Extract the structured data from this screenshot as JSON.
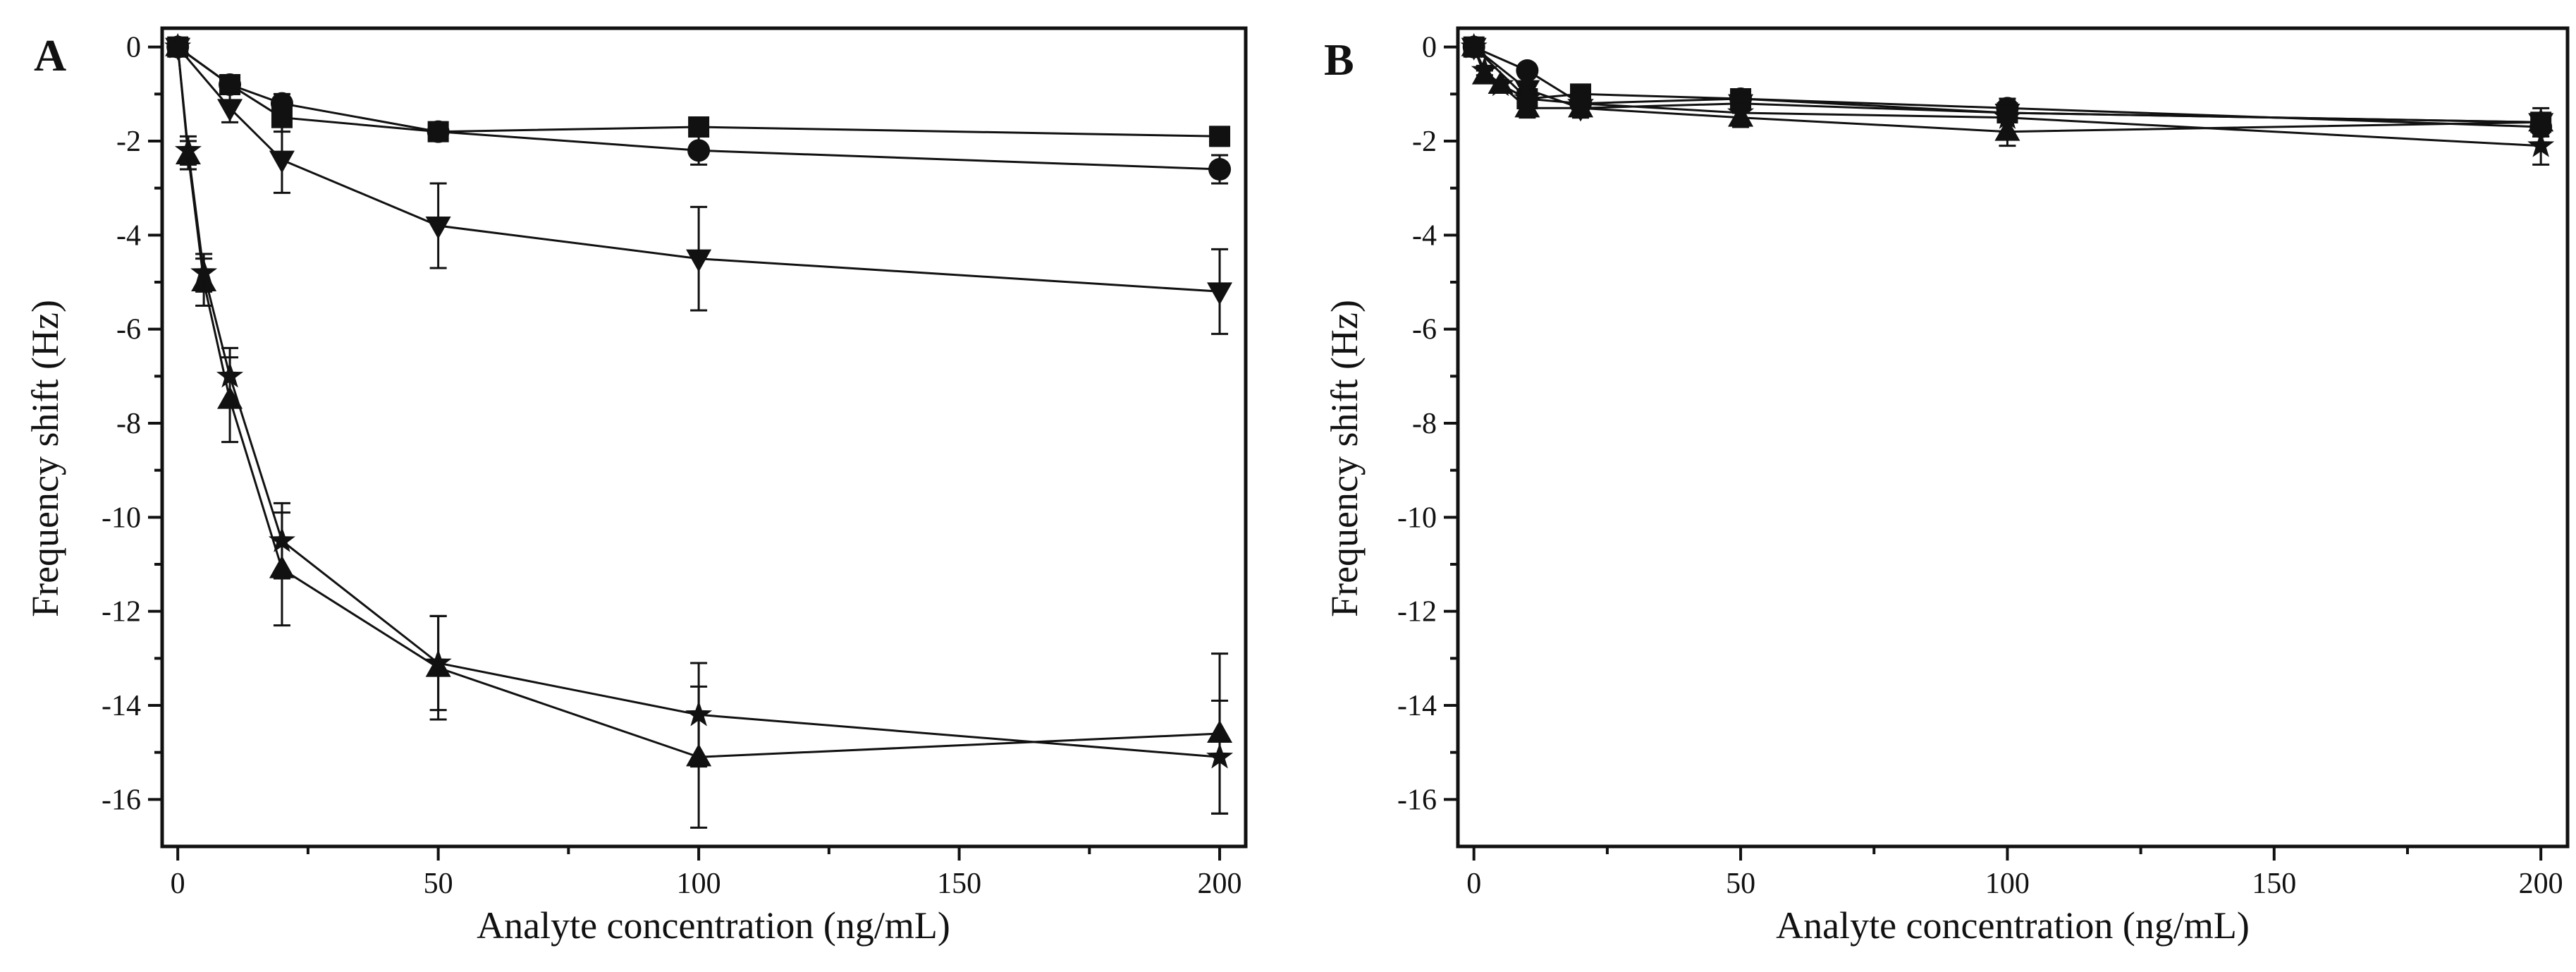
{
  "figure": {
    "panel_a_letter": "A",
    "panel_b_letter": "B"
  },
  "colors": {
    "ink": "#111111",
    "background": "#ffffff"
  },
  "chart_data": [
    {
      "panel": "A",
      "type": "line",
      "title": "",
      "xlabel": "Analyte concentration (ng/mL)",
      "ylabel": "Frequency shift (Hz)",
      "xlim": [
        -3,
        205
      ],
      "ylim": [
        -17,
        0.4
      ],
      "xticks": [
        0,
        50,
        100,
        150,
        200
      ],
      "yticks": [
        0,
        -2,
        -4,
        -6,
        -8,
        -10,
        -12,
        -14,
        -16
      ],
      "grid": false,
      "legend": "none",
      "series": [
        {
          "name": "square",
          "marker": "square",
          "x": [
            0,
            10,
            20,
            50,
            100,
            200
          ],
          "y": [
            0,
            -0.8,
            -1.5,
            -1.8,
            -1.7,
            -1.9
          ],
          "err": [
            0,
            0.1,
            0.3,
            0.1,
            0.2,
            0.2
          ]
        },
        {
          "name": "circle",
          "marker": "circle",
          "x": [
            0,
            10,
            20,
            50,
            100,
            200
          ],
          "y": [
            0,
            -0.8,
            -1.2,
            -1.8,
            -2.2,
            -2.6
          ],
          "err": [
            0,
            0.1,
            0.2,
            0.2,
            0.3,
            0.3
          ]
        },
        {
          "name": "down-triangle",
          "marker": "triangle-down",
          "x": [
            0,
            10,
            20,
            50,
            100,
            200
          ],
          "y": [
            0,
            -1.3,
            -2.4,
            -3.8,
            -4.5,
            -5.2
          ],
          "err": [
            0,
            0.3,
            0.7,
            0.9,
            1.1,
            0.9
          ]
        },
        {
          "name": "up-triangle",
          "marker": "triangle-up",
          "x": [
            0,
            2,
            5,
            10,
            20,
            50,
            100,
            200
          ],
          "y": [
            0,
            -2.3,
            -5.0,
            -7.5,
            -11.1,
            -13.2,
            -15.1,
            -14.6
          ],
          "err": [
            0,
            0.3,
            0.5,
            0.9,
            1.2,
            1.1,
            1.5,
            1.7
          ]
        },
        {
          "name": "star",
          "marker": "star",
          "x": [
            0,
            2,
            5,
            10,
            20,
            50,
            100,
            200
          ],
          "y": [
            0,
            -2.2,
            -4.8,
            -7.0,
            -10.5,
            -13.1,
            -14.2,
            -15.1
          ],
          "err": [
            0,
            0.3,
            0.4,
            0.6,
            0.8,
            1.0,
            1.1,
            1.2
          ]
        }
      ]
    },
    {
      "panel": "B",
      "type": "line",
      "title": "",
      "xlabel": "Analyte concentration (ng/mL)",
      "ylabel": "Frequency shift (Hz)",
      "xlim": [
        -3,
        205
      ],
      "ylim": [
        -17,
        0.4
      ],
      "xticks": [
        0,
        50,
        100,
        150,
        200
      ],
      "yticks": [
        0,
        -2,
        -4,
        -6,
        -8,
        -10,
        -12,
        -14,
        -16
      ],
      "grid": false,
      "legend": "none",
      "series": [
        {
          "name": "square",
          "marker": "square",
          "x": [
            0,
            10,
            20,
            50,
            100,
            200
          ],
          "y": [
            0,
            -1.1,
            -1.0,
            -1.1,
            -1.4,
            -1.6
          ],
          "err": [
            0,
            0.1,
            0.1,
            0.1,
            0.1,
            0.1
          ]
        },
        {
          "name": "circle",
          "marker": "circle",
          "x": [
            0,
            10,
            20,
            50,
            100,
            200
          ],
          "y": [
            0,
            -0.5,
            -1.2,
            -1.1,
            -1.3,
            -1.7
          ],
          "err": [
            0,
            0.1,
            0.2,
            0.2,
            0.2,
            0.2
          ]
        },
        {
          "name": "down-triangle",
          "marker": "triangle-down",
          "x": [
            0,
            10,
            20,
            50,
            100,
            200
          ],
          "y": [
            0,
            -0.9,
            -1.3,
            -1.2,
            -1.4,
            -1.6
          ],
          "err": [
            0,
            0.1,
            0.2,
            0.2,
            0.2,
            0.2
          ]
        },
        {
          "name": "up-triangle",
          "marker": "triangle-up",
          "x": [
            0,
            2,
            5,
            10,
            20,
            50,
            100,
            200
          ],
          "y": [
            0,
            -0.6,
            -0.8,
            -1.3,
            -1.3,
            -1.5,
            -1.8,
            -1.6
          ],
          "err": [
            0,
            0.1,
            0.1,
            0.2,
            0.2,
            0.2,
            0.3,
            0.3
          ]
        },
        {
          "name": "star",
          "marker": "star",
          "x": [
            0,
            2,
            5,
            10,
            20,
            50,
            100,
            200
          ],
          "y": [
            0,
            -0.5,
            -0.8,
            -1.1,
            -1.2,
            -1.4,
            -1.5,
            -2.1
          ],
          "err": [
            0,
            0.1,
            0.1,
            0.2,
            0.2,
            0.2,
            0.3,
            0.4
          ]
        }
      ]
    }
  ]
}
